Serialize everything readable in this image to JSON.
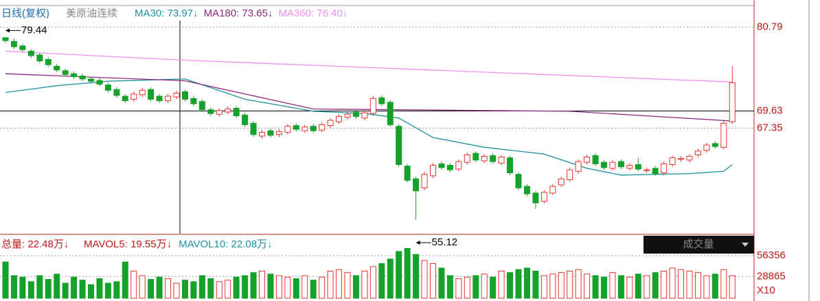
{
  "chart_data": [
    {
      "type": "candlestick",
      "title": "日线(复权)",
      "subtitle": "美原油连续",
      "up_color": "#e8322a",
      "down_color": "#16a22a",
      "open": [
        79.4,
        78.9,
        78.3,
        77.6,
        77.1,
        76.5,
        75.6,
        75.0,
        74.6,
        74.3,
        73.9,
        73.7,
        73.1,
        72.5,
        71.6,
        71.2,
        71.8,
        72.5,
        71.6,
        71.0,
        71.5,
        72.2,
        71.3,
        70.9,
        69.8,
        69.2,
        69.5,
        70.0,
        69.1,
        68.0,
        66.3,
        67.0,
        66.5,
        66.8,
        67.7,
        67.0,
        67.6,
        67.1,
        67.7,
        68.2,
        68.8,
        69.5,
        68.7,
        69.3,
        71.4,
        70.8,
        67.6,
        62.3,
        60.6,
        59.4,
        61.0,
        62.6,
        62.4,
        61.9,
        62.8,
        64.0,
        63.0,
        63.7,
        62.7,
        63.4,
        61.2,
        59.6,
        58.7,
        57.6,
        58.7,
        59.8,
        60.5,
        61.6,
        62.8,
        63.7,
        62.8,
        62.0,
        62.9,
        62.0,
        62.5,
        61.7,
        62.0,
        61.4,
        62.5,
        63.2,
        63.1,
        63.8,
        64.4,
        65.3,
        64.8,
        68.2
      ],
      "high": [
        79.44,
        79.3,
        78.6,
        77.9,
        77.4,
        76.8,
        75.9,
        75.3,
        74.9,
        74.6,
        74.2,
        74.0,
        73.4,
        72.8,
        71.9,
        72.2,
        72.7,
        72.8,
        71.9,
        71.9,
        72.3,
        72.5,
        71.6,
        71.2,
        70.1,
        70.0,
        70.2,
        70.3,
        69.4,
        68.3,
        67.1,
        67.3,
        67.2,
        67.9,
        68.0,
        67.8,
        67.9,
        68.1,
        68.7,
        69.2,
        69.5,
        69.8,
        69.7,
        71.6,
        71.7,
        71.1,
        67.9,
        62.6,
        60.9,
        61.5,
        62.7,
        62.9,
        62.7,
        63.2,
        64.1,
        64.3,
        63.9,
        64.0,
        63.8,
        63.7,
        61.5,
        59.9,
        59.0,
        59.1,
        59.9,
        60.9,
        62.1,
        63.2,
        63.8,
        64.0,
        63.1,
        63.1,
        63.2,
        62.7,
        63.4,
        62.1,
        62.3,
        62.9,
        63.7,
        63.6,
        63.9,
        64.6,
        65.4,
        65.6,
        68.3,
        75.6
      ],
      "low": [
        78.7,
        77.9,
        77.5,
        76.7,
        76.0,
        75.5,
        74.8,
        74.2,
        73.9,
        73.6,
        73.3,
        72.9,
        72.1,
        71.4,
        70.7,
        70.9,
        71.5,
        70.9,
        70.7,
        70.7,
        71.2,
        70.9,
        70.3,
        69.5,
        69.0,
        68.9,
        69.2,
        68.7,
        67.5,
        66.2,
        66.0,
        66.1,
        66.2,
        66.5,
        66.9,
        66.7,
        66.7,
        66.8,
        67.4,
        67.9,
        68.5,
        68.6,
        68.4,
        69.0,
        70.3,
        67.5,
        62.2,
        60.1,
        55.12,
        59.1,
        60.7,
        61.8,
        61.5,
        61.6,
        62.5,
        62.8,
        62.7,
        62.6,
        62.4,
        61.1,
        59.1,
        58.3,
        56.6,
        57.3,
        58.4,
        59.5,
        60.2,
        61.3,
        62.5,
        62.3,
        61.8,
        61.7,
        61.9,
        61.7,
        61.6,
        61.4,
        61.0,
        61.1,
        62.2,
        62.9,
        62.8,
        63.5,
        64.1,
        64.6,
        64.5,
        67.9
      ],
      "close": [
        79.0,
        78.2,
        77.8,
        77.0,
        76.3,
        75.8,
        75.1,
        74.5,
        74.2,
        73.9,
        73.6,
        73.2,
        72.4,
        71.7,
        71.0,
        71.9,
        72.4,
        71.2,
        71.0,
        71.6,
        72.0,
        71.2,
        70.6,
        69.8,
        69.3,
        69.7,
        69.9,
        69.0,
        67.8,
        66.5,
        66.8,
        66.4,
        66.9,
        67.6,
        67.2,
        67.5,
        67.0,
        67.8,
        68.4,
        68.9,
        69.2,
        68.9,
        69.4,
        71.3,
        70.6,
        67.8,
        62.5,
        60.4,
        59.0,
        61.2,
        62.4,
        62.1,
        61.8,
        62.9,
        63.8,
        63.1,
        63.6,
        62.9,
        63.5,
        61.4,
        59.4,
        58.6,
        57.4,
        58.8,
        59.6,
        60.6,
        61.8,
        62.9,
        63.5,
        62.6,
        62.1,
        62.8,
        62.2,
        62.4,
        61.9,
        61.8,
        61.3,
        62.6,
        63.4,
        63.3,
        63.6,
        64.3,
        65.1,
        64.9,
        68.0,
        73.4
      ],
      "series": [
        {
          "name": "MA30: 73.97↓",
          "color": "#1f8fa0",
          "x": [
            0,
            6,
            12,
            21,
            28,
            36,
            42,
            46,
            50,
            56,
            63,
            68,
            72,
            80,
            84,
            85
          ],
          "values": [
            72.1,
            73.0,
            73.6,
            73.9,
            71.2,
            69.6,
            69.3,
            68.7,
            66.1,
            64.8,
            63.9,
            62.0,
            61.1,
            61.3,
            61.6,
            62.5
          ]
        },
        {
          "name": "MA180: 73.65↓",
          "color": "#8e2a7e",
          "x": [
            0,
            21,
            36,
            66,
            85
          ],
          "values": [
            74.6,
            73.65,
            69.9,
            69.6,
            68.3
          ]
        },
        {
          "name": "MA360: 76.40↓",
          "color": "#f08ef0",
          "x": [
            0,
            21,
            85
          ],
          "values": [
            77.6,
            76.4,
            73.5
          ]
        }
      ],
      "ylim": [
        53.3,
        83.5
      ],
      "yticks": [
        80.79,
        69.63,
        67.35
      ]
    },
    {
      "type": "volume",
      "title": "总量: 22.48万↓",
      "legend": [
        {
          "name": "MAVOL5: 19.55万↓",
          "color": "#c01818"
        },
        {
          "name": "MAVOL10: 22.08万↓",
          "color": "#1f8fa0"
        }
      ],
      "panel_label": "成交量",
      "unit_label": "X10",
      "values": [
        48000,
        30000,
        28000,
        22000,
        30000,
        25000,
        32000,
        20000,
        28000,
        24000,
        18000,
        26000,
        20000,
        22000,
        48000,
        36000,
        30000,
        25000,
        28000,
        26000,
        20000,
        24000,
        22000,
        30000,
        26000,
        22000,
        24000,
        28000,
        30000,
        34000,
        36000,
        32000,
        30000,
        28000,
        26000,
        30000,
        24000,
        28000,
        36000,
        38000,
        34000,
        30000,
        36000,
        42000,
        46000,
        52000,
        62000,
        66000,
        58000,
        50000,
        46000,
        40000,
        30000,
        26000,
        28000,
        30000,
        32000,
        28000,
        36000,
        34000,
        38000,
        40000,
        36000,
        30000,
        32000,
        34000,
        36000,
        38000,
        32000,
        30000,
        28000,
        34000,
        30000,
        28000,
        32000,
        30000,
        34000,
        36000,
        40000,
        38000,
        36000,
        34000,
        30000,
        32000,
        38000,
        30000
      ],
      "ylim": [
        0,
        81000
      ],
      "yticks": [
        56356,
        28865
      ]
    }
  ]
}
